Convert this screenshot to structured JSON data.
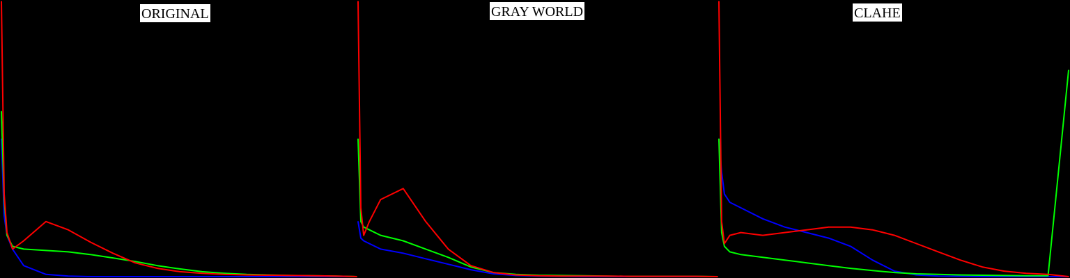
{
  "panels": {
    "original": {
      "title": "ORIGINAL"
    },
    "grayworld": {
      "title": "GRAY WORLD"
    },
    "clahe": {
      "title": "CLAHE"
    }
  },
  "colors": {
    "background": "#000000",
    "red": "#ff0000",
    "green": "#00ff00",
    "blue": "#0000ff",
    "label_background": "#ffffff",
    "label_text": "#000000"
  },
  "chart_data": [
    {
      "type": "line",
      "title": "ORIGINAL",
      "xlim": [
        0,
        255
      ],
      "ylim": [
        0,
        1
      ],
      "grid": false,
      "series": [
        {
          "color": "red",
          "x": [
            0,
            2,
            4,
            8,
            16,
            32,
            48,
            64,
            80,
            96,
            112,
            128,
            144,
            160,
            176,
            192,
            208,
            224,
            240,
            255
          ],
          "values": [
            1.0,
            0.3,
            0.16,
            0.1,
            0.13,
            0.2,
            0.17,
            0.125,
            0.085,
            0.05,
            0.03,
            0.018,
            0.012,
            0.008,
            0.006,
            0.005,
            0.004,
            0.003,
            0.002,
            0.0
          ]
        },
        {
          "color": "green",
          "x": [
            0,
            2,
            4,
            8,
            16,
            32,
            48,
            64,
            80,
            96,
            112,
            128,
            144,
            160,
            176,
            192,
            208,
            224,
            240,
            255
          ],
          "values": [
            0.6,
            0.28,
            0.15,
            0.11,
            0.1,
            0.095,
            0.09,
            0.08,
            0.068,
            0.055,
            0.04,
            0.028,
            0.018,
            0.012,
            0.008,
            0.006,
            0.004,
            0.003,
            0.002,
            0.0
          ]
        },
        {
          "color": "blue",
          "x": [
            0,
            2,
            4,
            8,
            16,
            32,
            48,
            64,
            80,
            96,
            112,
            128,
            144,
            160,
            176,
            192,
            208,
            224,
            240,
            255
          ],
          "values": [
            0.5,
            0.22,
            0.15,
            0.1,
            0.04,
            0.008,
            0.002,
            0.0,
            0.0,
            0.0,
            0.0,
            0.0,
            0.0,
            0.0,
            0.0,
            0.0,
            0.0,
            0.0,
            0.0,
            0.0
          ]
        }
      ]
    },
    {
      "type": "line",
      "title": "GRAY WORLD",
      "xlim": [
        0,
        255
      ],
      "ylim": [
        0,
        1
      ],
      "grid": false,
      "series": [
        {
          "color": "red",
          "x": [
            0,
            2,
            4,
            8,
            16,
            32,
            48,
            64,
            80,
            96,
            112,
            128,
            144,
            160,
            176,
            192,
            208,
            224,
            240,
            255
          ],
          "values": [
            1.0,
            0.25,
            0.15,
            0.2,
            0.28,
            0.32,
            0.2,
            0.1,
            0.04,
            0.015,
            0.006,
            0.003,
            0.002,
            0.002,
            0.002,
            0.001,
            0.001,
            0.001,
            0.001,
            0.0
          ]
        },
        {
          "color": "green",
          "x": [
            0,
            2,
            4,
            8,
            16,
            32,
            48,
            64,
            80,
            96,
            112,
            128,
            144,
            160,
            176,
            192,
            208,
            224,
            240,
            255
          ],
          "values": [
            0.5,
            0.2,
            0.18,
            0.17,
            0.15,
            0.13,
            0.1,
            0.07,
            0.035,
            0.015,
            0.008,
            0.005,
            0.004,
            0.003,
            0.002,
            0.001,
            0.001,
            0.001,
            0.001,
            0.0
          ]
        },
        {
          "color": "blue",
          "x": [
            0,
            2,
            4,
            8,
            16,
            32,
            48,
            64,
            80,
            96,
            112,
            128,
            144,
            160,
            176,
            192,
            208,
            224,
            240,
            255
          ],
          "values": [
            0.2,
            0.14,
            0.13,
            0.12,
            0.1,
            0.085,
            0.065,
            0.045,
            0.025,
            0.01,
            0.004,
            0.002,
            0.001,
            0.0,
            0.0,
            0.0,
            0.0,
            0.0,
            0.0,
            0.0
          ]
        }
      ]
    },
    {
      "type": "line",
      "title": "CLAHE",
      "xlim": [
        0,
        255
      ],
      "ylim": [
        0,
        1
      ],
      "grid": false,
      "series": [
        {
          "color": "red",
          "x": [
            0,
            2,
            4,
            8,
            16,
            32,
            48,
            64,
            80,
            96,
            112,
            128,
            144,
            160,
            176,
            192,
            208,
            224,
            240,
            255
          ],
          "values": [
            1.0,
            0.2,
            0.12,
            0.15,
            0.16,
            0.15,
            0.16,
            0.17,
            0.18,
            0.18,
            0.17,
            0.15,
            0.12,
            0.09,
            0.06,
            0.035,
            0.02,
            0.012,
            0.008,
            0.0
          ]
        },
        {
          "color": "green",
          "x": [
            0,
            2,
            4,
            8,
            16,
            32,
            48,
            64,
            80,
            96,
            112,
            128,
            144,
            160,
            176,
            192,
            208,
            224,
            240,
            255
          ],
          "values": [
            0.5,
            0.16,
            0.11,
            0.09,
            0.08,
            0.07,
            0.06,
            0.05,
            0.04,
            0.03,
            0.022,
            0.015,
            0.01,
            0.008,
            0.006,
            0.005,
            0.004,
            0.003,
            0.003,
            0.75
          ]
        },
        {
          "color": "blue",
          "x": [
            0,
            2,
            4,
            8,
            16,
            32,
            48,
            64,
            80,
            96,
            112,
            128,
            144,
            160,
            176,
            192,
            208,
            224,
            240,
            255
          ],
          "values": [
            0.5,
            0.38,
            0.3,
            0.27,
            0.25,
            0.21,
            0.18,
            0.16,
            0.14,
            0.11,
            0.06,
            0.02,
            0.006,
            0.002,
            0.001,
            0.0,
            0.0,
            0.0,
            0.0,
            0.0
          ]
        }
      ]
    }
  ]
}
